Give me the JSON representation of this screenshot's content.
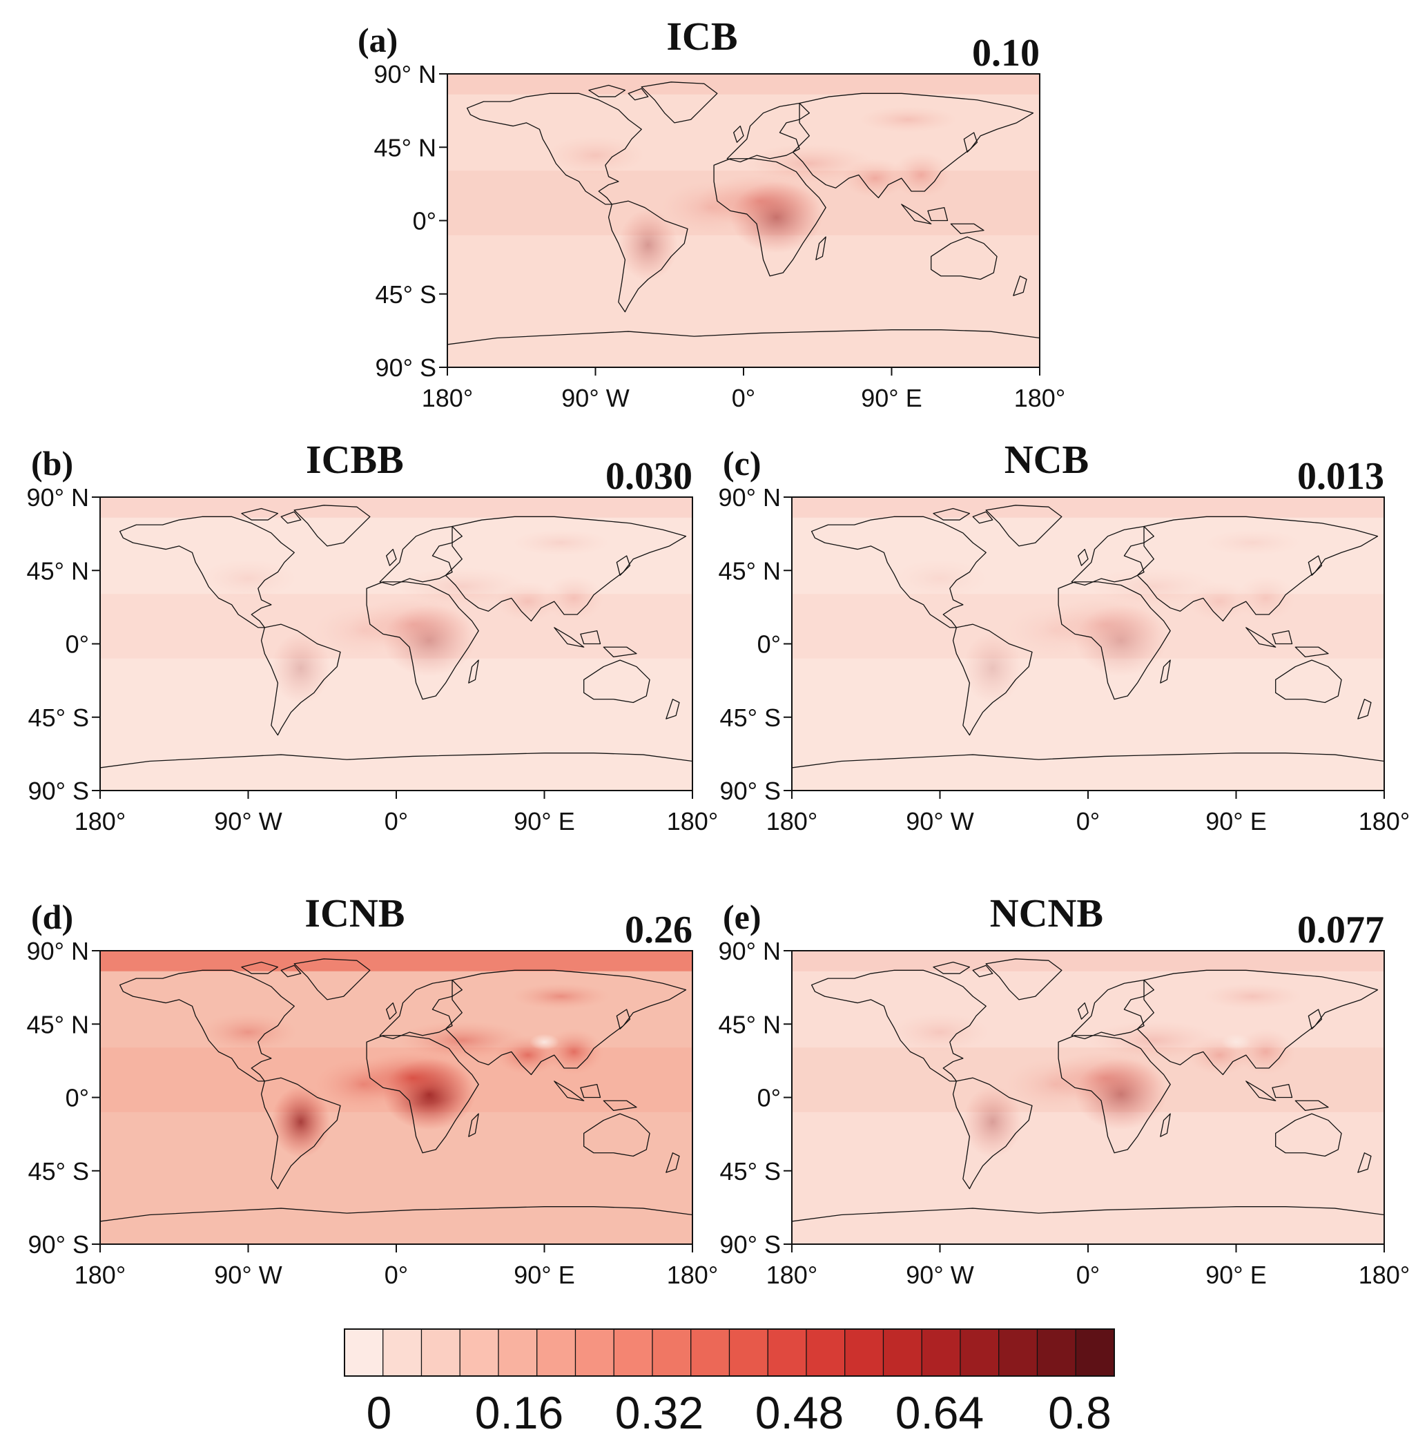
{
  "figure": {
    "panels": [
      {
        "id": "a",
        "letter": "(a)",
        "title": "ICB",
        "mean": "0.10",
        "intensity": 0.45
      },
      {
        "id": "b",
        "letter": "(b)",
        "title": "ICBB",
        "mean": "0.030",
        "intensity": 0.28
      },
      {
        "id": "c",
        "letter": "(c)",
        "title": "NCB",
        "mean": "0.013",
        "intensity": 0.22
      },
      {
        "id": "d",
        "letter": "(d)",
        "title": "ICNB",
        "mean": "0.26",
        "intensity": 1.0
      },
      {
        "id": "e",
        "letter": "(e)",
        "title": "NCNB",
        "mean": "0.077",
        "intensity": 0.42
      }
    ],
    "lat_ticks": [
      "90° N",
      "45° N",
      "0°",
      "45° S",
      "90° S"
    ],
    "lon_ticks": [
      "180°",
      "90° W",
      "0°",
      "90° E",
      "180°"
    ],
    "colorbar": {
      "labels": [
        "0",
        "0.16",
        "0.32",
        "0.48",
        "0.64",
        "0.8"
      ],
      "colors": [
        "#fdeae4",
        "#fcdcd2",
        "#fbcfc2",
        "#fbc1b1",
        "#f9b2a0",
        "#f8a390",
        "#f69481",
        "#f48572",
        "#f07764",
        "#ec6857",
        "#e7594a",
        "#e0493f",
        "#d73c35",
        "#cc312d",
        "#be2927",
        "#ad2223",
        "#9b1d1f",
        "#88191c",
        "#751519",
        "#5e1116"
      ]
    }
  }
}
